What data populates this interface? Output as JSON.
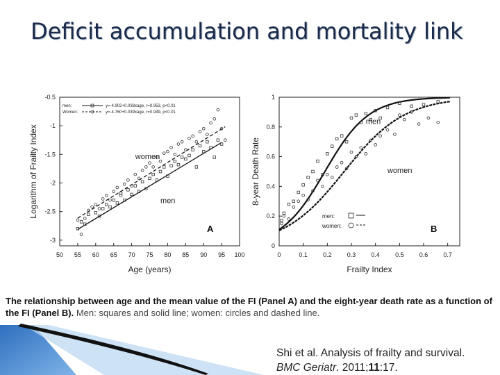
{
  "slide": {
    "title": "Deficit accumulation and mortality link",
    "caption_bold": "The relationship between age and the mean value of the FI (Panel A) and the eight-year death rate as a function of the FI (Panel B).",
    "caption_rest": " Men: squares and solid line; women: circles and dashed line.",
    "citation_line1": "Shi et al. Analysis of frailty and survival.",
    "citation_journal": "BMC Geriatr",
    "citation_sep": ". 2011;",
    "citation_volume": "11",
    "citation_pages": ":17."
  },
  "colors": {
    "title": "#1a2a4a",
    "deco_blue": "#4a8fd8",
    "deco_light": "#bcd8f2"
  },
  "chart_data": [
    {
      "type": "scatter",
      "panel_label": "A",
      "xlabel": "Age (years)",
      "ylabel": "Logarithm of Frailty Index",
      "xlim": [
        50,
        100
      ],
      "ylim": [
        -3.1,
        -0.5
      ],
      "xticks": [
        50,
        55,
        60,
        65,
        70,
        75,
        80,
        85,
        90,
        95,
        100
      ],
      "yticks": [
        -0.5,
        -1,
        -1.5,
        -2,
        -2.5,
        -3
      ],
      "ytick_labels": [
        "-0.5",
        "-1",
        "-1.5",
        "-2",
        "-2.5",
        "-3"
      ],
      "legend_position": "top-left",
      "legend": [
        {
          "label": "men:",
          "equation": "y=-4.902+0.038xage, r=0.953, p<0.01"
        },
        {
          "label": "Women:",
          "equation": "y=-4.760+0.039xage, r=0.949, p<0.01"
        }
      ],
      "annotations": [
        {
          "text": "women",
          "x": 71,
          "y": -1.58
        },
        {
          "text": "men",
          "x": 78,
          "y": -2.35
        }
      ],
      "series": [
        {
          "name": "men",
          "marker": "square",
          "line": "solid",
          "fit": {
            "intercept": -4.902,
            "slope": 0.038
          },
          "x": [
            55,
            56,
            57,
            58,
            60,
            61,
            62,
            63,
            64,
            65,
            66,
            67,
            68,
            69,
            70,
            71,
            72,
            73,
            74,
            75,
            76,
            77,
            78,
            79,
            80,
            81,
            82,
            83,
            84,
            85,
            86,
            87,
            88,
            89,
            90,
            91,
            92,
            93,
            94,
            95
          ],
          "y": [
            -2.8,
            -2.68,
            -2.72,
            -2.55,
            -2.52,
            -2.58,
            -2.45,
            -2.38,
            -2.42,
            -2.3,
            -2.35,
            -2.18,
            -2.3,
            -2.12,
            -2.2,
            -2.05,
            -2.15,
            -1.98,
            -2.1,
            -1.92,
            -1.85,
            -1.95,
            -1.8,
            -1.72,
            -1.88,
            -1.7,
            -1.62,
            -1.68,
            -1.55,
            -1.58,
            -1.52,
            -1.42,
            -1.72,
            -1.35,
            -1.45,
            -1.28,
            -1.38,
            -1.55,
            -1.25,
            -1.32
          ]
        },
        {
          "name": "women",
          "marker": "circle",
          "line": "dashed",
          "fit": {
            "intercept": -4.76,
            "slope": 0.039
          },
          "x": [
            55,
            56,
            57,
            58,
            59,
            60,
            61,
            62,
            63,
            64,
            65,
            66,
            67,
            68,
            69,
            70,
            71,
            72,
            73,
            74,
            75,
            76,
            77,
            78,
            79,
            80,
            81,
            82,
            83,
            84,
            85,
            86,
            87,
            88,
            89,
            90,
            91,
            92,
            93,
            94,
            95,
            96
          ],
          "y": [
            -2.65,
            -2.9,
            -2.62,
            -2.48,
            -2.42,
            -2.38,
            -2.45,
            -2.28,
            -2.22,
            -2.3,
            -2.15,
            -2.08,
            -2.22,
            -2.02,
            -1.95,
            -2.05,
            -1.85,
            -1.92,
            -1.78,
            -1.72,
            -1.65,
            -1.72,
            -1.55,
            -1.62,
            -1.48,
            -1.45,
            -1.38,
            -1.5,
            -1.32,
            -1.28,
            -1.42,
            -1.22,
            -1.18,
            -1.28,
            -1.1,
            -1.05,
            -1.15,
            -0.95,
            -0.88,
            -0.72,
            -1.05,
            -1.25
          ]
        }
      ]
    },
    {
      "type": "scatter",
      "panel_label": "B",
      "xlabel": "Frailty Index",
      "ylabel": "8-year Death Rate",
      "xlim": [
        0,
        0.75
      ],
      "ylim": [
        0,
        1
      ],
      "xticks": [
        0,
        0.1,
        0.2,
        0.3,
        0.4,
        0.5,
        0.6,
        0.7
      ],
      "xtick_labels": [
        "0",
        "0.1",
        "0.2",
        "0.3",
        "0.4",
        "0.5",
        "0.6",
        "0.7"
      ],
      "yticks": [
        0,
        0.2,
        0.4,
        0.6,
        0.8,
        1
      ],
      "ytick_labels": [
        "0",
        "0.2",
        "0.4",
        "0.6",
        "0.8",
        "1"
      ],
      "legend_position": "bottom-right",
      "legend": [
        {
          "label": "men:",
          "marker": "square",
          "line": "solid"
        },
        {
          "label": "women:",
          "marker": "circle",
          "line": "dashed"
        }
      ],
      "annotations": [
        {
          "text": "men",
          "x": 0.36,
          "y": 0.82
        },
        {
          "text": "women",
          "x": 0.45,
          "y": 0.49
        }
      ],
      "series": [
        {
          "name": "men",
          "marker": "square",
          "line": "solid",
          "x": [
            0.01,
            0.02,
            0.04,
            0.06,
            0.08,
            0.1,
            0.12,
            0.14,
            0.16,
            0.18,
            0.2,
            0.22,
            0.24,
            0.26,
            0.28,
            0.3,
            0.32,
            0.34,
            0.36,
            0.38,
            0.4,
            0.42,
            0.45,
            0.5,
            0.55,
            0.6,
            0.66
          ],
          "y": [
            0.17,
            0.22,
            0.28,
            0.3,
            0.36,
            0.41,
            0.46,
            0.5,
            0.57,
            0.48,
            0.62,
            0.67,
            0.72,
            0.74,
            0.7,
            0.86,
            0.88,
            0.83,
            0.89,
            0.85,
            0.91,
            0.86,
            0.93,
            0.96,
            0.94,
            0.95,
            0.97
          ]
        },
        {
          "name": "women",
          "marker": "circle",
          "line": "dashed",
          "x": [
            0.01,
            0.02,
            0.04,
            0.06,
            0.08,
            0.1,
            0.12,
            0.14,
            0.16,
            0.18,
            0.2,
            0.22,
            0.24,
            0.26,
            0.28,
            0.3,
            0.32,
            0.34,
            0.36,
            0.38,
            0.4,
            0.42,
            0.45,
            0.48,
            0.5,
            0.52,
            0.55,
            0.58,
            0.62,
            0.66
          ],
          "y": [
            0.15,
            0.2,
            0.18,
            0.26,
            0.3,
            0.34,
            0.31,
            0.37,
            0.44,
            0.4,
            0.48,
            0.46,
            0.53,
            0.56,
            0.52,
            0.63,
            0.6,
            0.66,
            0.62,
            0.71,
            0.68,
            0.74,
            0.78,
            0.75,
            0.88,
            0.85,
            0.9,
            0.82,
            0.86,
            0.83
          ]
        }
      ]
    }
  ]
}
